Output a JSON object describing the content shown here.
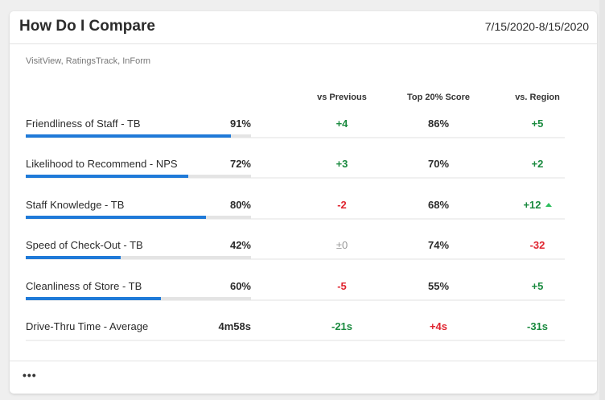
{
  "header": {
    "title": "How Do I Compare",
    "date_range": "7/15/2020-8/15/2020"
  },
  "source": "VisitView, RatingsTrack, InForm",
  "columns": {
    "vs_previous": "vs Previous",
    "top20": "Top 20% Score",
    "vs_region": "vs. Region"
  },
  "colors": {
    "green": "#1a8a3f",
    "red": "#e0242f",
    "neutral": "#999999",
    "bar": "#1f7ad8"
  },
  "rows": [
    {
      "label": "Friendliness of Staff - TB",
      "value": "91%",
      "bar_percent": 91,
      "vs_previous": "+4",
      "vs_previous_trend": "green",
      "top20": "86%",
      "top20_trend": "dark",
      "vs_region": "+5",
      "vs_region_trend": "green"
    },
    {
      "label": "Likelihood to Recommend - NPS",
      "value": "72%",
      "bar_percent": 72,
      "vs_previous": "+3",
      "vs_previous_trend": "green",
      "top20": "70%",
      "top20_trend": "dark",
      "vs_region": "+2",
      "vs_region_trend": "green"
    },
    {
      "label": "Staff Knowledge - TB",
      "value": "80%",
      "bar_percent": 80,
      "vs_previous": "-2",
      "vs_previous_trend": "red",
      "top20": "68%",
      "top20_trend": "dark",
      "vs_region": "+12",
      "vs_region_trend": "green",
      "vs_region_icon": "triangle-up-icon"
    },
    {
      "label": "Speed of Check-Out - TB",
      "value": "42%",
      "bar_percent": 42,
      "vs_previous": "±0",
      "vs_previous_trend": "neutral",
      "top20": "74%",
      "top20_trend": "dark",
      "vs_region": "-32",
      "vs_region_trend": "red"
    },
    {
      "label": "Cleanliness of Store - TB",
      "value": "60%",
      "bar_percent": 60,
      "vs_previous": "-5",
      "vs_previous_trend": "red",
      "top20": "55%",
      "top20_trend": "dark",
      "vs_region": "+5",
      "vs_region_trend": "green"
    },
    {
      "label": "Drive-Thru Time - Average",
      "value": "4m58s",
      "vs_previous": "-21s",
      "vs_previous_trend": "green",
      "top20": "+4s",
      "top20_trend": "red",
      "vs_region": "-31s",
      "vs_region_trend": "green"
    }
  ],
  "footer": {
    "more_icon": "ellipsis-icon",
    "more_label": "•••"
  }
}
